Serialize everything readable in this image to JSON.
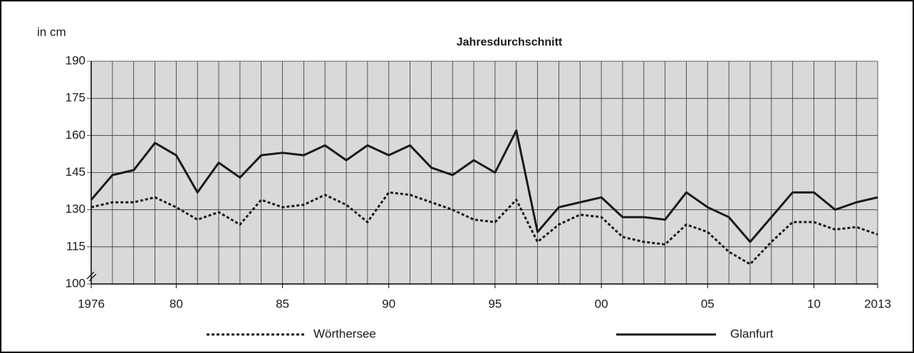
{
  "chart_data": {
    "type": "line",
    "title": "Jahresdurchschnitt",
    "y_label": "in cm",
    "x": [
      1976,
      1977,
      1978,
      1979,
      1980,
      1981,
      1982,
      1983,
      1984,
      1985,
      1986,
      1987,
      1988,
      1989,
      1990,
      1991,
      1992,
      1993,
      1994,
      1995,
      1996,
      1997,
      1998,
      1999,
      2000,
      2001,
      2002,
      2003,
      2004,
      2005,
      2006,
      2007,
      2008,
      2009,
      2010,
      2011,
      2012,
      2013
    ],
    "series": [
      {
        "name": "Wörthersee",
        "color": "#1a1a1a",
        "style": "dotted",
        "values": [
          131,
          133,
          133,
          135,
          131,
          126,
          129,
          124,
          134,
          131,
          132,
          136,
          132,
          125,
          137,
          136,
          133,
          130,
          126,
          125,
          134,
          117,
          124,
          128,
          127,
          119,
          117,
          116,
          124,
          121,
          113,
          108,
          117,
          125,
          125,
          122,
          123,
          120
        ]
      },
      {
        "name": "Glanfurt",
        "color": "#1a1a1a",
        "style": "solid",
        "values": [
          134,
          144,
          146,
          157,
          152,
          137,
          149,
          143,
          152,
          153,
          152,
          156,
          150,
          156,
          152,
          156,
          147,
          144,
          150,
          145,
          162,
          121,
          131,
          133,
          135,
          127,
          127,
          126,
          137,
          131,
          127,
          117,
          127,
          137,
          137,
          130,
          133,
          135
        ]
      }
    ],
    "xlim": [
      1976,
      2013
    ],
    "xticks": [
      1976,
      {
        "value": 1980,
        "label": "80"
      },
      {
        "value": 1985,
        "label": "85"
      },
      {
        "value": 1990,
        "label": "90"
      },
      {
        "value": 1995,
        "label": "95"
      },
      {
        "value": 2000,
        "label": "00"
      },
      {
        "value": 2005,
        "label": "05"
      },
      {
        "value": 2010,
        "label": "10"
      },
      2013
    ],
    "ylim": [
      100,
      190
    ],
    "yticks": [
      100,
      115,
      130,
      145,
      160,
      175,
      190
    ],
    "grid": true,
    "legend": "bottom"
  }
}
